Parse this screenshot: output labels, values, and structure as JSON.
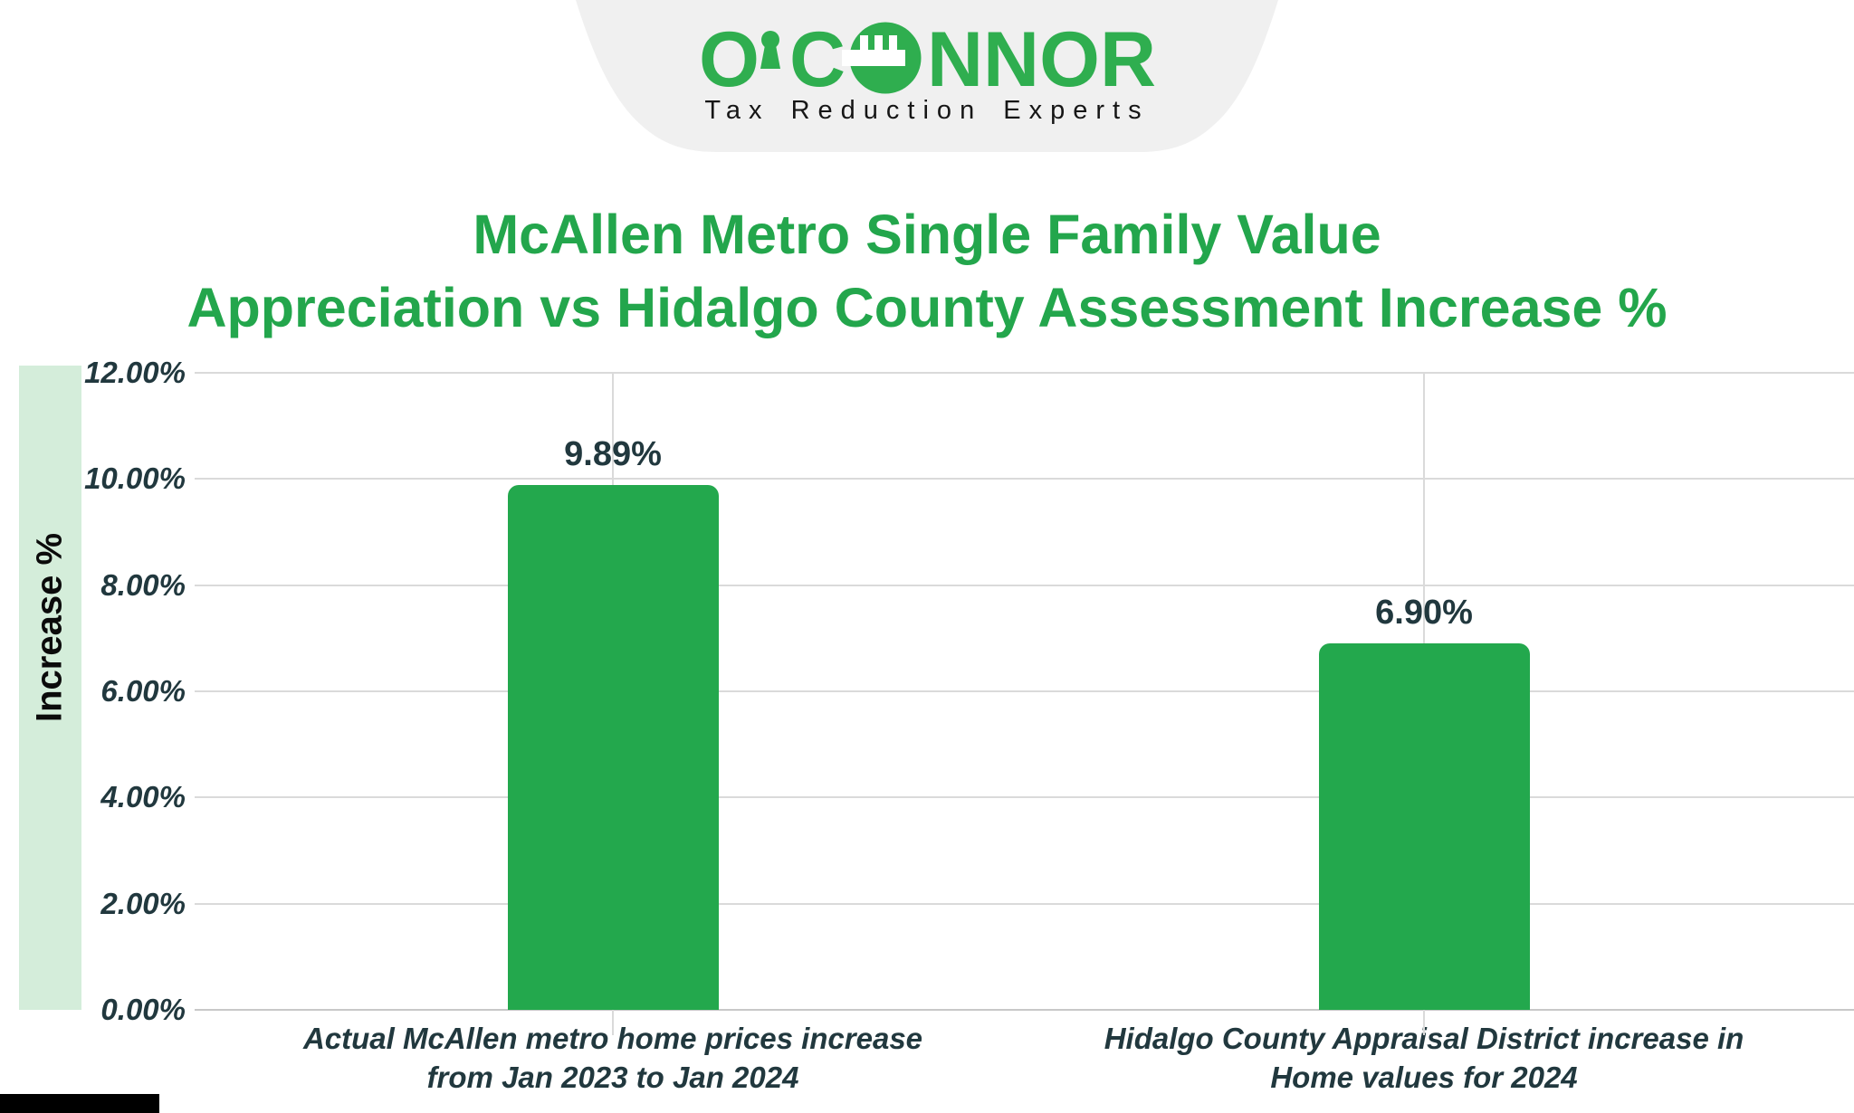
{
  "brand": {
    "wordmark": "O'CONNOR",
    "wordmark_o1": "O",
    "wordmark_c": "C",
    "wordmark_nnor": "NNOR",
    "tagline": "Tax Reduction Experts"
  },
  "title": {
    "line1": "McAllen Metro Single Family Value",
    "line2": "Appreciation vs Hidalgo County Assessment Increase %"
  },
  "chart_data": {
    "type": "bar",
    "title": "McAllen Metro Single Family Value Appreciation vs Hidalgo County Assessment Increase %",
    "ylabel": "Increase %",
    "xlabel": "",
    "ylim": [
      0,
      12
    ],
    "y_tick_interval": 2,
    "grid": true,
    "legend_position": "none",
    "bar_color": "#23A84D",
    "categories": [
      "Actual McAllen metro home prices increase from Jan 2023 to Jan 2024",
      "Hidalgo County Appraisal District increase in Home values for 2024"
    ],
    "values": [
      9.89,
      6.9
    ],
    "value_labels": [
      "9.89%",
      "6.90%"
    ],
    "y_ticks": [
      {
        "value": 12,
        "label": "12.00%"
      },
      {
        "value": 10,
        "label": "10.00%"
      },
      {
        "value": 8,
        "label": "8.00%"
      },
      {
        "value": 6,
        "label": "6.00%"
      },
      {
        "value": 4,
        "label": "4.00%"
      },
      {
        "value": 2,
        "label": "2.00%"
      },
      {
        "value": 0,
        "label": "0.00%"
      }
    ],
    "x_tick_lines": [
      [
        "Actual McAllen metro home prices increase",
        "from Jan 2023 to Jan 2024"
      ],
      [
        "Hidalgo County Appraisal District increase in",
        "Home values for 2024"
      ]
    ]
  },
  "colors": {
    "brand_green": "#2FAE4F",
    "title_green": "#23A64C",
    "bar_green": "#23A84D",
    "dark_text": "#21383E",
    "axis_band_green": "#D4EDDA",
    "gridline_gray": "#DADADA",
    "banner_gray": "#F0F0F0",
    "tagline_black": "#161616"
  }
}
